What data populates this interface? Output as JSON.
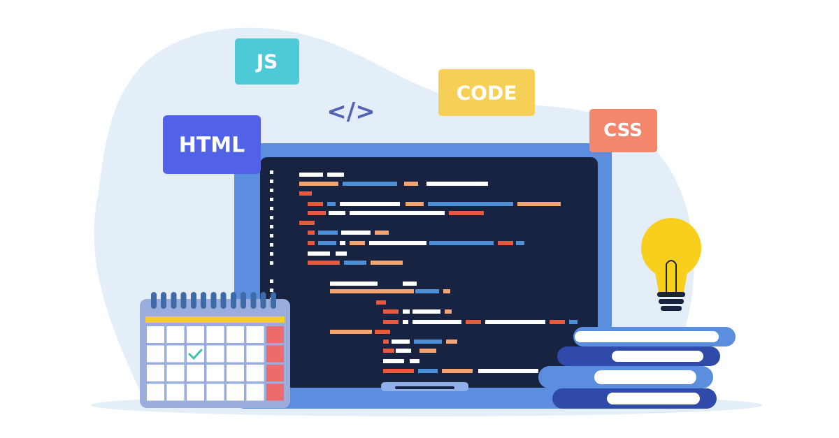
{
  "badges": {
    "js": "JS",
    "tag": "</>",
    "code": "CODE",
    "css": "CSS",
    "html": "HTML"
  }
}
